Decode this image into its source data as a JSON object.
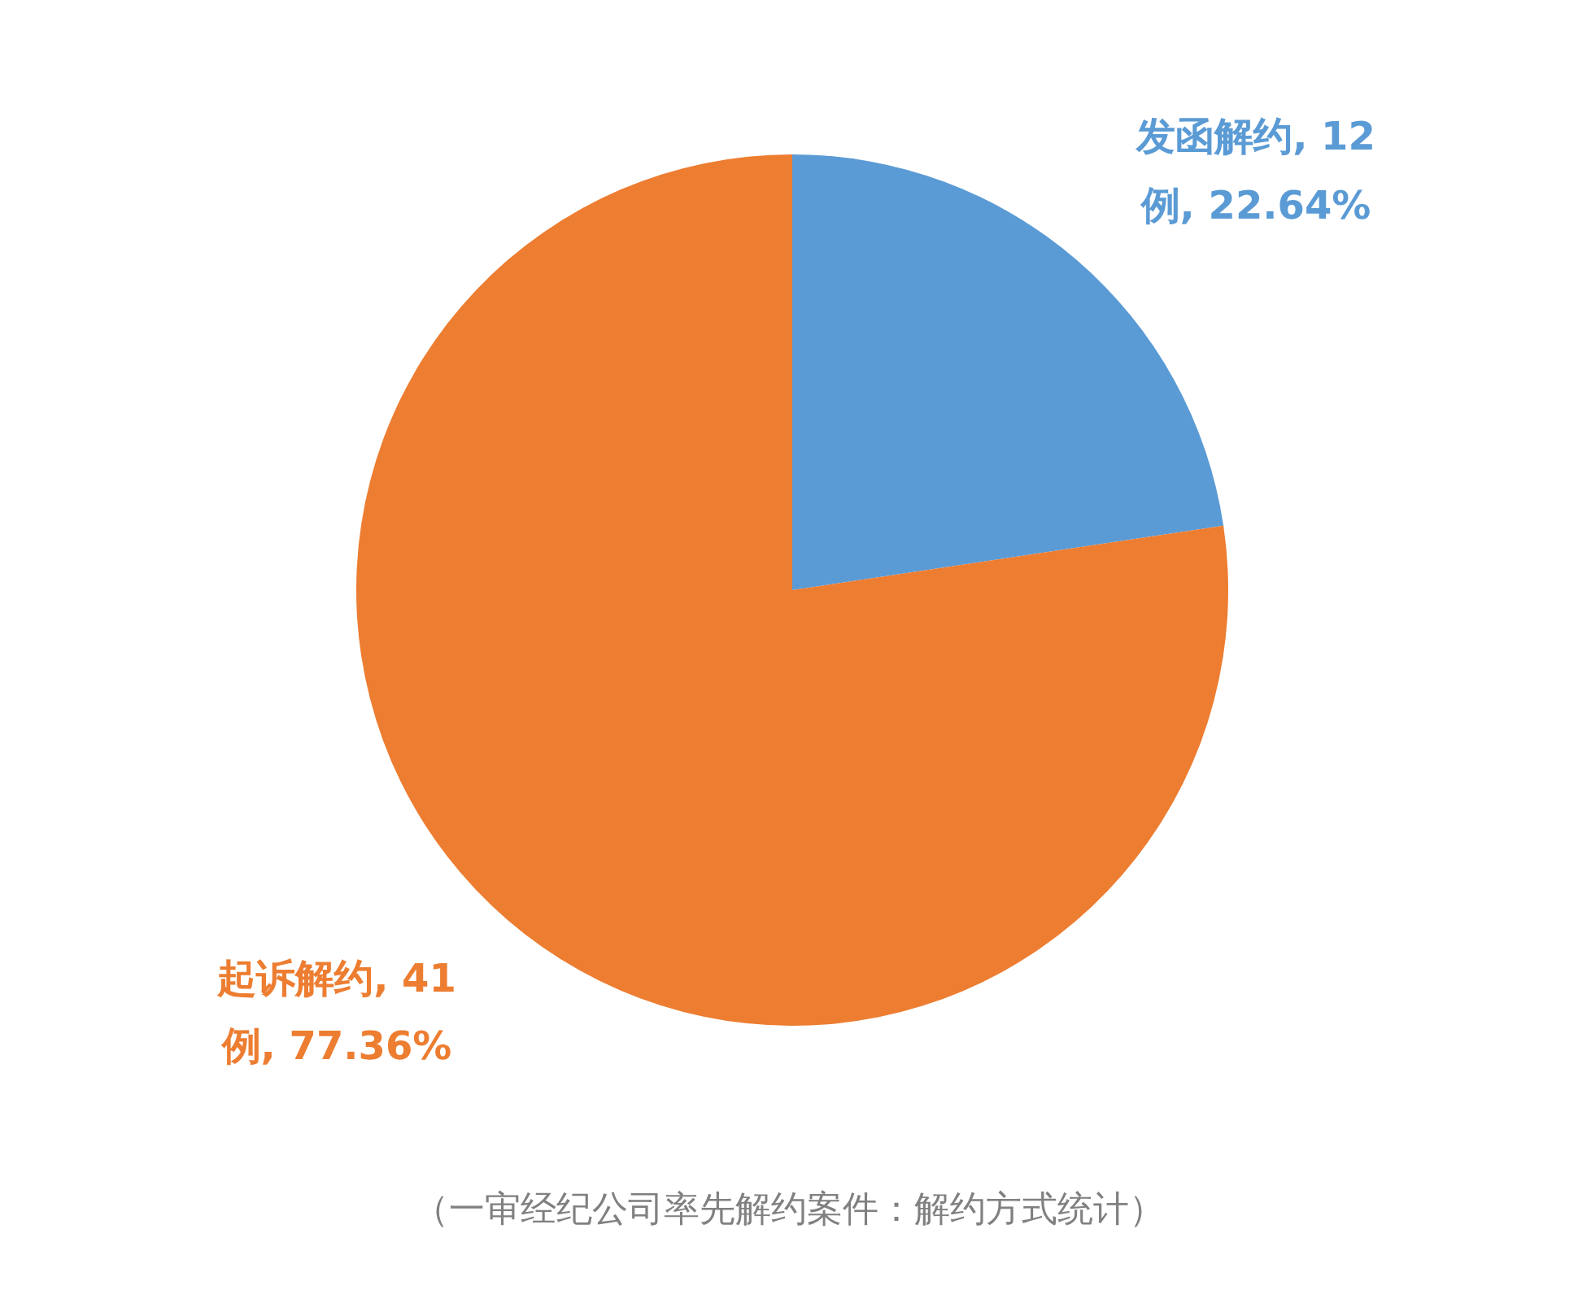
{
  "chart_data": {
    "type": "pie",
    "categories": [
      "发函解约",
      "起诉解约"
    ],
    "values": [
      12,
      41
    ],
    "colors": [
      "#5b9bd5",
      "#ed7d31"
    ],
    "value_labels": [
      ", 12 例, 22.64%",
      ", 41 例, 77.36%"
    ],
    "annotations": [
      "（一审经纪公司率先解约案件：解约方式统计）"
    ]
  }
}
